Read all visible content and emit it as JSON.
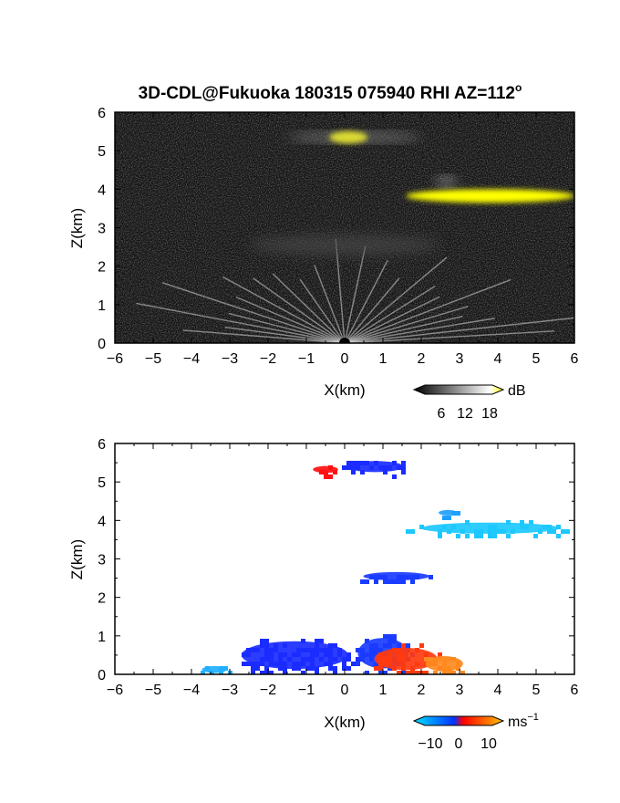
{
  "title": "3D-CDL@Fukuoka 180315 075940 RHI AZ=112",
  "title_sup": "o",
  "chart_data": [
    {
      "type": "heatmap",
      "variable": "intensity",
      "xlabel": "X(km)",
      "ylabel": "Z(km)",
      "xlim": [
        -6,
        6
      ],
      "ylim": [
        0,
        6
      ],
      "xticks": [
        "-6",
        "-5",
        "-4",
        "-3",
        "-2",
        "-1",
        "0",
        "1",
        "2",
        "3",
        "4",
        "5",
        "6"
      ],
      "yticks": [
        "0",
        "1",
        "2",
        "3",
        "4",
        "5",
        "6"
      ],
      "background": "#141414",
      "colorbar": {
        "unit": "dB",
        "ticks": [
          "6",
          "12",
          "18"
        ],
        "range": [
          0,
          20
        ],
        "colors": [
          "#000000",
          "#ffffff",
          "#ffff00"
        ]
      },
      "features": [
        {
          "x": [
            -0.4,
            0.6
          ],
          "z": [
            5.2,
            5.5
          ],
          "level": "high",
          "color": "#ffff00"
        },
        {
          "x": [
            -1.5,
            2.0
          ],
          "z": [
            5.25,
            5.45
          ],
          "level": "medium",
          "color": "#9a9a9a"
        },
        {
          "x": [
            1.6,
            6.0
          ],
          "z": [
            3.65,
            4.0
          ],
          "level": "high",
          "color": "#ffff00"
        },
        {
          "x": [
            2.4,
            2.9
          ],
          "z": [
            4.1,
            4.3
          ],
          "level": "medium",
          "color": "#c8c8c8"
        },
        {
          "x": [
            -2.5,
            2.5
          ],
          "z": [
            2.3,
            2.8
          ],
          "level": "low",
          "color": "#4a4a4a"
        },
        {
          "x": [
            -6.0,
            6.0
          ],
          "z": [
            0.0,
            1.0
          ],
          "level": "medium",
          "color": "#9e9e9e"
        }
      ]
    },
    {
      "type": "heatmap",
      "variable": "velocity",
      "xlabel": "X(km)",
      "ylabel": "Z(km)",
      "xlim": [
        -6,
        6
      ],
      "ylim": [
        0,
        6
      ],
      "xticks": [
        "-6",
        "-5",
        "-4",
        "-3",
        "-2",
        "-1",
        "0",
        "1",
        "2",
        "3",
        "4",
        "5",
        "6"
      ],
      "yticks": [
        "0",
        "1",
        "2",
        "3",
        "4",
        "5",
        "6"
      ],
      "background": "#ffffff",
      "colorbar": {
        "unit": "ms",
        "unit_sup": "−1",
        "ticks": [
          "−10",
          "0",
          "10"
        ],
        "range": [
          -15,
          15
        ],
        "colors": [
          "#00e0ff",
          "#0033ff",
          "#ff0000",
          "#ffc000"
        ]
      },
      "features": [
        {
          "x": [
            -0.9,
            -0.1
          ],
          "z": [
            5.2,
            5.45
          ],
          "velocity": 5,
          "color": "#ff1010"
        },
        {
          "x": [
            -0.1,
            1.7
          ],
          "z": [
            5.2,
            5.6
          ],
          "velocity": -6,
          "color": "#1a2cff"
        },
        {
          "x": [
            1.6,
            6.0
          ],
          "z": [
            3.6,
            4.0
          ],
          "velocity": -11,
          "color": "#1cc8ff"
        },
        {
          "x": [
            2.4,
            3.0
          ],
          "z": [
            4.1,
            4.3
          ],
          "velocity": -8,
          "color": "#1ea0ff"
        },
        {
          "x": [
            0.3,
            2.4
          ],
          "z": [
            2.4,
            2.7
          ],
          "velocity": -5,
          "color": "#1a3cff"
        },
        {
          "x": [
            -3.0,
            0.4
          ],
          "z": [
            0.0,
            1.0
          ],
          "velocity": -6,
          "color": "#1a2cff"
        },
        {
          "x": [
            -3.8,
            -3.0
          ],
          "z": [
            0.0,
            0.25
          ],
          "velocity": -11,
          "color": "#22b0ff"
        },
        {
          "x": [
            0.2,
            1.8
          ],
          "z": [
            0.0,
            1.1
          ],
          "velocity": -5,
          "color": "#1a3cff"
        },
        {
          "x": [
            0.6,
            2.6
          ],
          "z": [
            0.0,
            0.8
          ],
          "velocity": 5,
          "color": "#ff3a10"
        },
        {
          "x": [
            2.0,
            3.2
          ],
          "z": [
            0.0,
            0.55
          ],
          "velocity": 10,
          "color": "#ff8a20"
        }
      ]
    }
  ]
}
